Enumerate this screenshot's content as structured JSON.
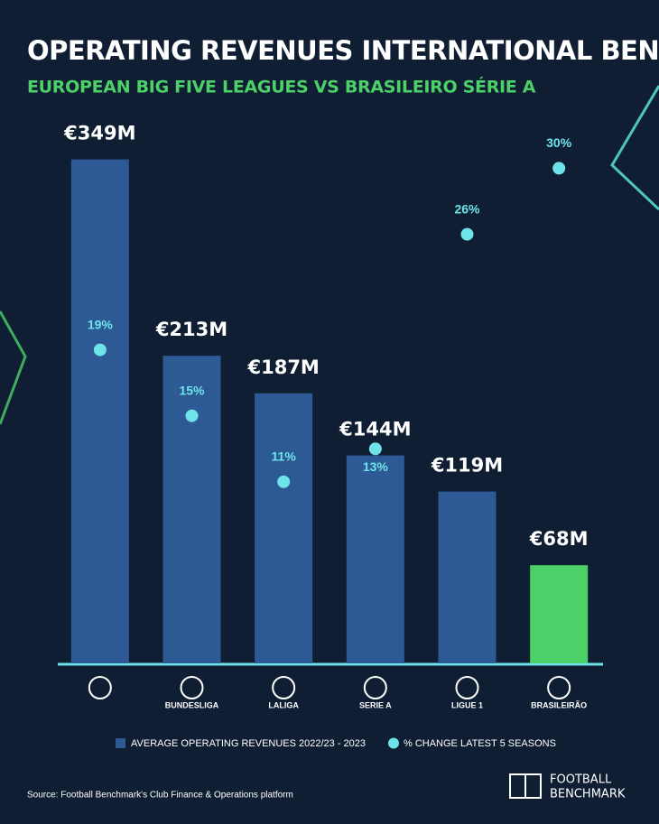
{
  "chart_data": {
    "type": "bar",
    "title": "OPERATING REVENUES INTERNATIONAL BENCHMARKING",
    "subtitle": "EUROPEAN BIG FIVE LEAGUES VS BRASILEIRO SÉRIE A",
    "categories": [
      null,
      "BUNDESLIGA",
      "LALIGA",
      "SERIE A",
      "LIGUE 1",
      "BRASILEIRÃO"
    ],
    "ylim": [
      0,
      400
    ],
    "y2lim": [
      0,
      35
    ],
    "series": [
      {
        "name": "AVERAGE OPERATING REVENUES 2022/23 - 2023",
        "type": "bar",
        "color": "#2d5a94",
        "colors": [
          "#2d5a94",
          "#2d5a94",
          "#2d5a94",
          "#2d5a94",
          "#2d5a94",
          "#4cd068"
        ],
        "values": [
          349,
          213,
          187,
          144,
          119,
          68
        ],
        "value_labels": [
          "€349M",
          "€213M",
          "€187M",
          "€144M",
          "€119M",
          "€68M"
        ]
      },
      {
        "name": "% CHANGE LATEST 5 SEASONS",
        "type": "scatter",
        "axis": "y2",
        "color": "#6fe3ea",
        "values": [
          19,
          15,
          11,
          13,
          26,
          30
        ],
        "value_labels": [
          "19%",
          "15%",
          "11%",
          "13%",
          "26%",
          "30%"
        ]
      }
    ],
    "source": "Source: Football Benchmark's Club Finance & Operations platform",
    "brand": [
      "FOOTBALL",
      "BENCHMARK"
    ]
  }
}
